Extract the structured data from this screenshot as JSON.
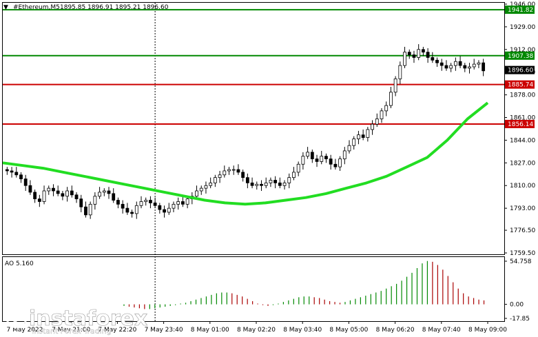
{
  "header": {
    "symbol": "#Ethereum,M5",
    "ohlc": "1895.85 1896.91 1895.21 1896.60"
  },
  "watermark": {
    "brand": "instaforex",
    "tagline": "Instant Forex Trading"
  },
  "colors": {
    "background": "#ffffff",
    "candle": "#000000",
    "ma": "#22dd22",
    "support_line": "#008800",
    "resistance_line": "#cc0000",
    "ao_up": "#008800",
    "ao_down": "#aa0000"
  },
  "chart_data": [
    {
      "type": "candlestick",
      "timeframe": "M5",
      "y_ticks": [
        "1946.00",
        "1929.00",
        "1912.00",
        "1895.00",
        "1878.00",
        "1861.00",
        "1844.00",
        "1827.00",
        "1810.00",
        "1793.00",
        "1776.50",
        "1759.50"
      ],
      "ylim": [
        1759.5,
        1946.0
      ],
      "x_tick_labels": [
        "7 May 2022",
        "7 May 21:00",
        "7 May 22:20",
        "7 May 23:40",
        "8 May 01:00",
        "8 May 02:20",
        "8 May 03:40",
        "8 May 05:00",
        "8 May 06:20",
        "8 May 07:40",
        "8 May 09:00"
      ],
      "horizontal_levels": [
        {
          "value": 1941.82,
          "label": "1941.82",
          "style": "green"
        },
        {
          "value": 1907.38,
          "label": "1907.38",
          "style": "green"
        },
        {
          "value": 1885.74,
          "label": "1885.74",
          "style": "red"
        },
        {
          "value": 1856.14,
          "label": "1856.14",
          "style": "red"
        }
      ],
      "current_price": {
        "value": 1896.6,
        "label": "1896.60"
      },
      "close_series": [
        1821,
        1820,
        1818,
        1815,
        1810,
        1805,
        1800,
        1798,
        1806,
        1808,
        1806,
        1804,
        1802,
        1806,
        1803,
        1800,
        1794,
        1788,
        1796,
        1802,
        1805,
        1806,
        1804,
        1799,
        1796,
        1793,
        1790,
        1789,
        1795,
        1798,
        1799,
        1797,
        1795,
        1792,
        1790,
        1793,
        1796,
        1798,
        1796,
        1800,
        1802,
        1806,
        1808,
        1810,
        1812,
        1816,
        1818,
        1821,
        1822,
        1822,
        1820,
        1816,
        1812,
        1810,
        1811,
        1810,
        1812,
        1814,
        1812,
        1810,
        1812,
        1816,
        1820,
        1826,
        1832,
        1835,
        1830,
        1828,
        1832,
        1830,
        1826,
        1824,
        1830,
        1836,
        1840,
        1845,
        1848,
        1846,
        1852,
        1856,
        1860,
        1866,
        1870,
        1880,
        1890,
        1900,
        1910,
        1908,
        1906,
        1912,
        1910,
        1906,
        1904,
        1902,
        1900,
        1898,
        1900,
        1903,
        1900,
        1898,
        1899,
        1901,
        1902,
        1896
      ],
      "ma_series": [
        1827,
        1825,
        1823,
        1820,
        1817,
        1814,
        1811,
        1808,
        1805,
        1802,
        1799,
        1797,
        1796,
        1797,
        1799,
        1801,
        1804,
        1808,
        1812,
        1817,
        1824,
        1831,
        1844,
        1860,
        1872
      ],
      "vertical_marker_label": "7 May 23:40"
    },
    {
      "type": "bar",
      "name": "AO",
      "title": "AO 5.160",
      "y_ticks": [
        "54.758",
        "0.00",
        "-17.85"
      ],
      "ylim": [
        -17.85,
        54.758
      ],
      "values": [
        -2,
        -3,
        -4,
        -5,
        -6,
        -6,
        -5,
        -4,
        -3,
        -2,
        -1,
        1,
        2,
        4,
        6,
        8,
        10,
        12,
        14,
        15,
        15,
        14,
        12,
        10,
        7,
        4,
        1,
        -1,
        -2,
        -1,
        1,
        3,
        5,
        7,
        9,
        10,
        10,
        9,
        8,
        6,
        4,
        3,
        2,
        3,
        5,
        7,
        9,
        11,
        13,
        15,
        17,
        20,
        23,
        26,
        30,
        35,
        40,
        46,
        52,
        55,
        54,
        50,
        44,
        36,
        28,
        20,
        14,
        10,
        8,
        6,
        5
      ]
    }
  ]
}
